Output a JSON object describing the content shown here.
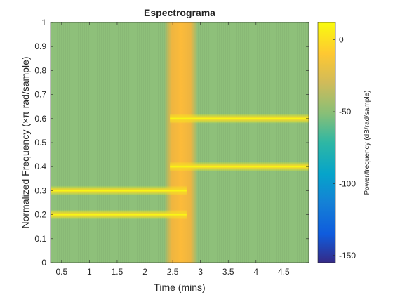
{
  "chart_data": {
    "type": "heatmap",
    "title": "Espectrograma",
    "xlabel": "Time (mins)",
    "ylabel": "Normalized Frequency  (×π rad/sample)",
    "xlim": [
      0.3,
      4.95
    ],
    "ylim": [
      0,
      1
    ],
    "xticks": [
      0.5,
      1,
      1.5,
      2,
      2.5,
      3,
      3.5,
      4,
      4.5
    ],
    "xtick_labels": [
      "0.5",
      "1",
      "1.5",
      "2",
      "2.5",
      "3",
      "3.5",
      "4",
      "4.5"
    ],
    "yticks": [
      0,
      0.1,
      0.2,
      0.3,
      0.4,
      0.5,
      0.6,
      0.7,
      0.8,
      0.9,
      1
    ],
    "ytick_labels": [
      "0",
      "0.1",
      "0.2",
      "0.3",
      "0.4",
      "0.5",
      "0.6",
      "0.7",
      "0.8",
      "0.9",
      "1"
    ],
    "colorbar": {
      "label": "Power/frequency (dB/rad/sample)",
      "clim": [
        -155,
        12
      ],
      "ticks": [
        0,
        -50,
        -100,
        -150
      ],
      "tick_labels": [
        "0",
        "-50",
        "-100",
        "-150"
      ],
      "colormap": "parula"
    },
    "background_level_db": -45,
    "transition": {
      "x_start": 2.45,
      "x_end": 2.85,
      "level_db": -8
    },
    "tones": [
      {
        "freq": 0.2,
        "x_start": 0.3,
        "x_end": 2.75,
        "level_db": 10
      },
      {
        "freq": 0.3,
        "x_start": 0.3,
        "x_end": 2.75,
        "level_db": 10
      },
      {
        "freq": 0.4,
        "x_start": 2.45,
        "x_end": 4.95,
        "level_db": 10
      },
      {
        "freq": 0.6,
        "x_start": 2.45,
        "x_end": 4.95,
        "level_db": 10
      }
    ]
  }
}
